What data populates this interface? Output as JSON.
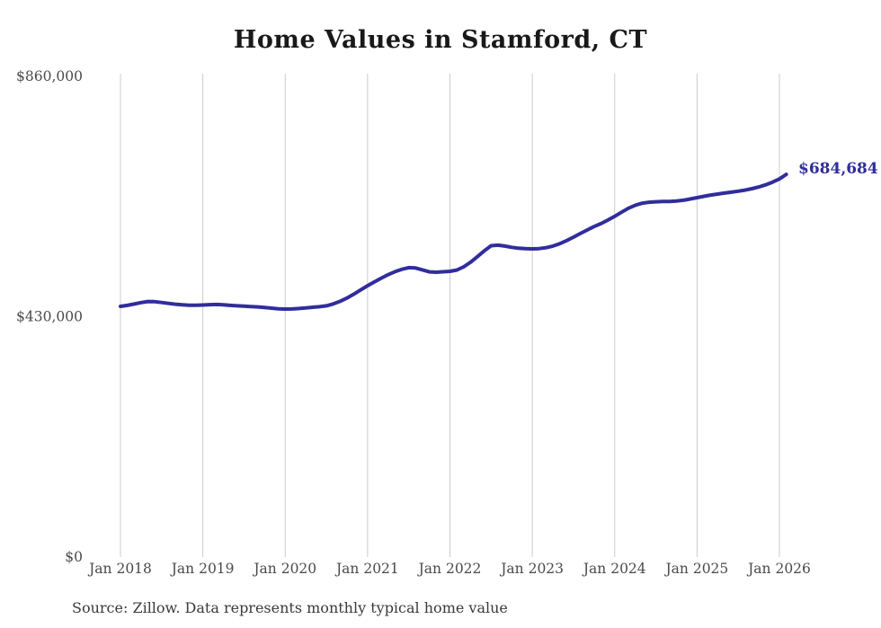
{
  "page": {
    "title": "Home Values in Stamford, CT",
    "source_note": "Source: Zillow. Data represents monthly typical home value",
    "end_label": "$684,684"
  },
  "colors": {
    "line": "#312d9c",
    "grid": "#cccccc",
    "axis_text": "#4a4a4a",
    "title_text": "#191919",
    "background": "#ffffff"
  },
  "chart_data": {
    "type": "line",
    "title": "Home Values in Stamford, CT",
    "xlabel": "",
    "ylabel": "",
    "ylim": [
      0,
      860000
    ],
    "grid": "vertical-only",
    "legend": "none",
    "x_tick_labels": [
      "Jan 2018",
      "Jan 2019",
      "Jan 2020",
      "Jan 2021",
      "Jan 2022",
      "Jan 2023",
      "Jan 2024",
      "Jan 2025",
      "Jan 2026"
    ],
    "y_ticks": [
      0,
      430000,
      860000
    ],
    "y_tick_labels": [
      "$0",
      "$430,000",
      "$860,000"
    ],
    "last_value": 684684,
    "last_value_label": "$684,684",
    "series": [
      {
        "name": "Monthly typical home value",
        "frequency": "monthly",
        "x_start": "2018-01",
        "x_end": "2026-02",
        "values": [
          448500,
          450200,
          452600,
          455300,
          457200,
          456800,
          455400,
          453800,
          452400,
          451300,
          450600,
          450400,
          450900,
          451500,
          451800,
          451200,
          450300,
          449400,
          448800,
          448200,
          447500,
          446400,
          445200,
          444200,
          443700,
          443900,
          444600,
          445800,
          446900,
          447800,
          449500,
          452800,
          457500,
          463400,
          470300,
          477900,
          485500,
          492400,
          499000,
          505300,
          510600,
          514800,
          517700,
          517200,
          513800,
          510200,
          509500,
          510300,
          511200,
          513500,
          519200,
          527400,
          537300,
          547800,
          557000,
          557900,
          556400,
          554100,
          552500,
          551700,
          551400,
          551800,
          553400,
          556400,
          560700,
          566100,
          572300,
          578800,
          585200,
          591200,
          596600,
          602800,
          609500,
          617000,
          624000,
          629500,
          633000,
          634800,
          635600,
          636000,
          636300,
          637000,
          638300,
          640500,
          643000,
          645400,
          647600,
          649500,
          651200,
          652800,
          654500,
          656500,
          659000,
          662200,
          666000,
          670800,
          676500,
          684684
        ]
      }
    ]
  }
}
